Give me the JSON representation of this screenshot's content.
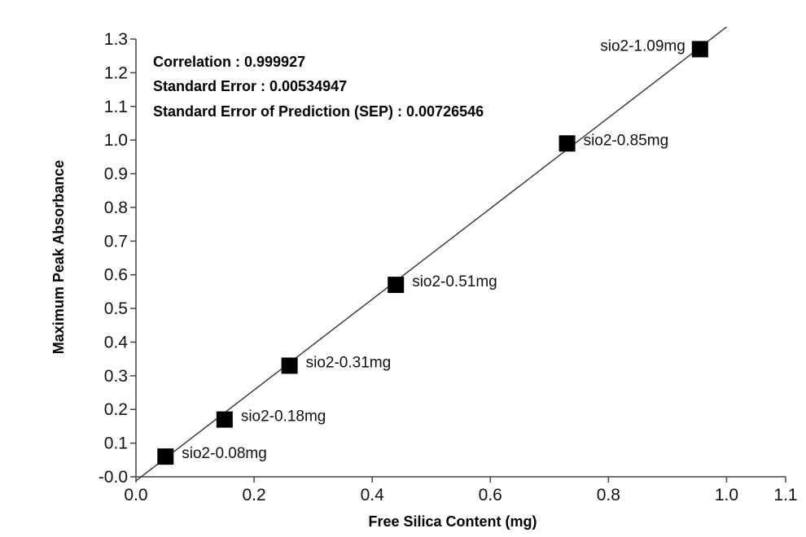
{
  "chart_data": {
    "type": "scatter",
    "xlabel": "Free Silica Content (mg)",
    "ylabel": "Maximum Peak Absorbance",
    "xlim": [
      0.0,
      1.1
    ],
    "ylim": [
      -0.0,
      1.3
    ],
    "x_ticks": [
      "0.0",
      "0.2",
      "0.4",
      "0.6",
      "0.8",
      "1.0",
      "1.1"
    ],
    "x_tick_values": [
      0.0,
      0.2,
      0.4,
      0.6,
      0.8,
      1.0,
      1.1
    ],
    "y_ticks": [
      "-0.0",
      "0.1",
      "0.2",
      "0.3",
      "0.4",
      "0.5",
      "0.6",
      "0.7",
      "0.8",
      "0.9",
      "1.0",
      "1.1",
      "1.2",
      "1.3"
    ],
    "y_tick_values": [
      0.0,
      0.1,
      0.2,
      0.3,
      0.4,
      0.5,
      0.6,
      0.7,
      0.8,
      0.9,
      1.0,
      1.1,
      1.2,
      1.3
    ],
    "stats": [
      "Correlation : 0.999927",
      "Standard Error : 0.00534947",
      "Standard Error of Prediction (SEP) : 0.00726546"
    ],
    "points": [
      {
        "label": "sio2-0.08mg",
        "x": 0.05,
        "y": 0.06
      },
      {
        "label": "sio2-0.18mg",
        "x": 0.15,
        "y": 0.17
      },
      {
        "label": "sio2-0.31mg",
        "x": 0.26,
        "y": 0.33
      },
      {
        "label": "sio2-0.51mg",
        "x": 0.44,
        "y": 0.57
      },
      {
        "label": "sio2-0.85mg",
        "x": 0.73,
        "y": 0.99
      },
      {
        "label": "sio2-1.09mg",
        "x": 0.955,
        "y": 1.27
      }
    ],
    "fit_line": {
      "x": [
        0.0,
        1.0
      ],
      "y": [
        -0.012,
        1.336
      ]
    },
    "grid": false,
    "legend": "none",
    "colors": {
      "marker": "#000000",
      "line": "#333333",
      "axis": "#444444"
    }
  }
}
